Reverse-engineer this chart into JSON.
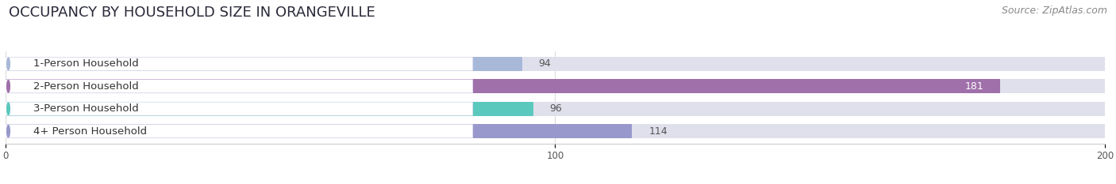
{
  "title": "OCCUPANCY BY HOUSEHOLD SIZE IN ORANGEVILLE",
  "source": "Source: ZipAtlas.com",
  "categories": [
    "1-Person Household",
    "2-Person Household",
    "3-Person Household",
    "4+ Person Household"
  ],
  "values": [
    94,
    181,
    96,
    114
  ],
  "bar_colors": [
    "#a8b8d8",
    "#a070aa",
    "#5bc8be",
    "#9898cc"
  ],
  "bar_bg_color": "#e0e0ec",
  "xlim": [
    0,
    200
  ],
  "xticks": [
    0,
    100,
    200
  ],
  "title_fontsize": 13,
  "source_fontsize": 9,
  "bar_label_fontsize": 9,
  "category_fontsize": 9.5,
  "background_color": "#ffffff",
  "bar_height": 0.62,
  "value_inside_bar": [
    181
  ],
  "label_box_color": "#ffffff",
  "label_text_color": "#333333",
  "value_outside_color": "#555555",
  "value_inside_color": "#ffffff"
}
